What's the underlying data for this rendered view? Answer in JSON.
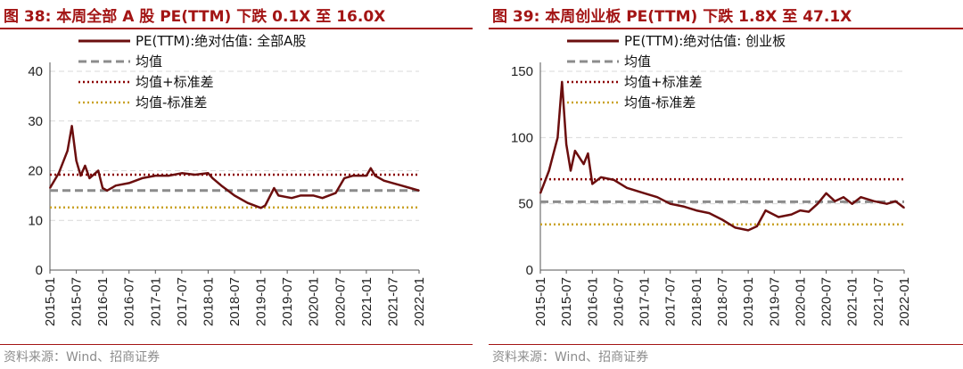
{
  "colors": {
    "title": "#a31515",
    "series": "#6b0e0e",
    "mean": "#8c8c8c",
    "upper": "#8b0000",
    "lower": "#c9a227",
    "grid": "#d9d9d9"
  },
  "source_text": "资料来源：Wind、招商证券",
  "chart_data": [
    {
      "type": "line",
      "title": "图 38:  本周全部 A 股 PE(TTM) 下跌 0.1X 至 16.0X",
      "ylim": [
        0,
        40
      ],
      "yticks": [
        0,
        10,
        20,
        30,
        40
      ],
      "grid": true,
      "legend_position": "top",
      "x_tick_labels": [
        "2015-01",
        "2015-07",
        "2016-01",
        "2016-07",
        "2017-01",
        "2017-07",
        "2018-01",
        "2018-07",
        "2019-01",
        "2019-07",
        "2020-01",
        "2020-07",
        "2021-01",
        "2021-07",
        "2022-01"
      ],
      "series": [
        {
          "name": "PE(TTM):绝对估值: 全部A股",
          "x": [
            "2015-01",
            "2015-03",
            "2015-05",
            "2015-06",
            "2015-07",
            "2015-08",
            "2015-09",
            "2015-10",
            "2015-12",
            "2016-01",
            "2016-02",
            "2016-04",
            "2016-07",
            "2016-10",
            "2017-01",
            "2017-04",
            "2017-07",
            "2017-10",
            "2018-01",
            "2018-02",
            "2018-04",
            "2018-07",
            "2018-10",
            "2019-01",
            "2019-02",
            "2019-04",
            "2019-05",
            "2019-08",
            "2019-10",
            "2020-01",
            "2020-03",
            "2020-06",
            "2020-08",
            "2020-10",
            "2021-01",
            "2021-02",
            "2021-03",
            "2021-05",
            "2021-07",
            "2021-09",
            "2021-11",
            "2022-01"
          ],
          "values": [
            16.5,
            19.5,
            24.0,
            29.0,
            22.0,
            19.0,
            21.0,
            18.5,
            20.0,
            16.5,
            16.0,
            17.0,
            17.5,
            18.5,
            19.0,
            19.0,
            19.5,
            19.2,
            19.5,
            18.5,
            17.0,
            15.0,
            13.5,
            12.5,
            13.0,
            16.5,
            15.0,
            14.5,
            15.0,
            15.0,
            14.5,
            15.5,
            18.5,
            19.0,
            19.0,
            20.5,
            19.0,
            18.0,
            17.5,
            17.0,
            16.5,
            16.0
          ]
        },
        {
          "name": "均值",
          "value": 16.0
        },
        {
          "name": "均值+标准差",
          "value": 19.2
        },
        {
          "name": "均值-标准差",
          "value": 12.6
        }
      ]
    },
    {
      "type": "line",
      "title": "图 39:  本周创业板 PE(TTM) 下跌 1.8X 至 47.1X",
      "ylim": [
        0,
        150
      ],
      "yticks": [
        0,
        50,
        100,
        150
      ],
      "grid": true,
      "legend_position": "top",
      "x_tick_labels": [
        "2015-01",
        "2015-07",
        "2016-01",
        "2016-07",
        "2017-01",
        "2017-07",
        "2018-01",
        "2018-07",
        "2019-01",
        "2019-07",
        "2020-01",
        "2020-07",
        "2021-01",
        "2021-07",
        "2022-01"
      ],
      "series": [
        {
          "name": "PE(TTM):绝对估值: 创业板",
          "x": [
            "2015-01",
            "2015-03",
            "2015-05",
            "2015-06",
            "2015-07",
            "2015-08",
            "2015-09",
            "2015-11",
            "2015-12",
            "2016-01",
            "2016-03",
            "2016-06",
            "2016-09",
            "2017-01",
            "2017-04",
            "2017-07",
            "2017-10",
            "2018-01",
            "2018-04",
            "2018-07",
            "2018-10",
            "2019-01",
            "2019-03",
            "2019-05",
            "2019-08",
            "2019-11",
            "2020-01",
            "2020-03",
            "2020-05",
            "2020-07",
            "2020-09",
            "2020-11",
            "2021-01",
            "2021-03",
            "2021-06",
            "2021-09",
            "2021-11",
            "2022-01"
          ],
          "values": [
            58,
            75,
            100,
            142,
            95,
            75,
            90,
            80,
            88,
            65,
            70,
            68,
            62,
            58,
            55,
            50,
            48,
            45,
            43,
            38,
            32,
            30,
            33,
            45,
            40,
            42,
            45,
            44,
            50,
            58,
            52,
            55,
            50,
            55,
            52,
            50,
            52,
            47
          ]
        },
        {
          "name": "均值",
          "value": 51.5
        },
        {
          "name": "均值+标准差",
          "value": 68.5
        },
        {
          "name": "均值-标准差",
          "value": 34.5
        }
      ]
    }
  ]
}
